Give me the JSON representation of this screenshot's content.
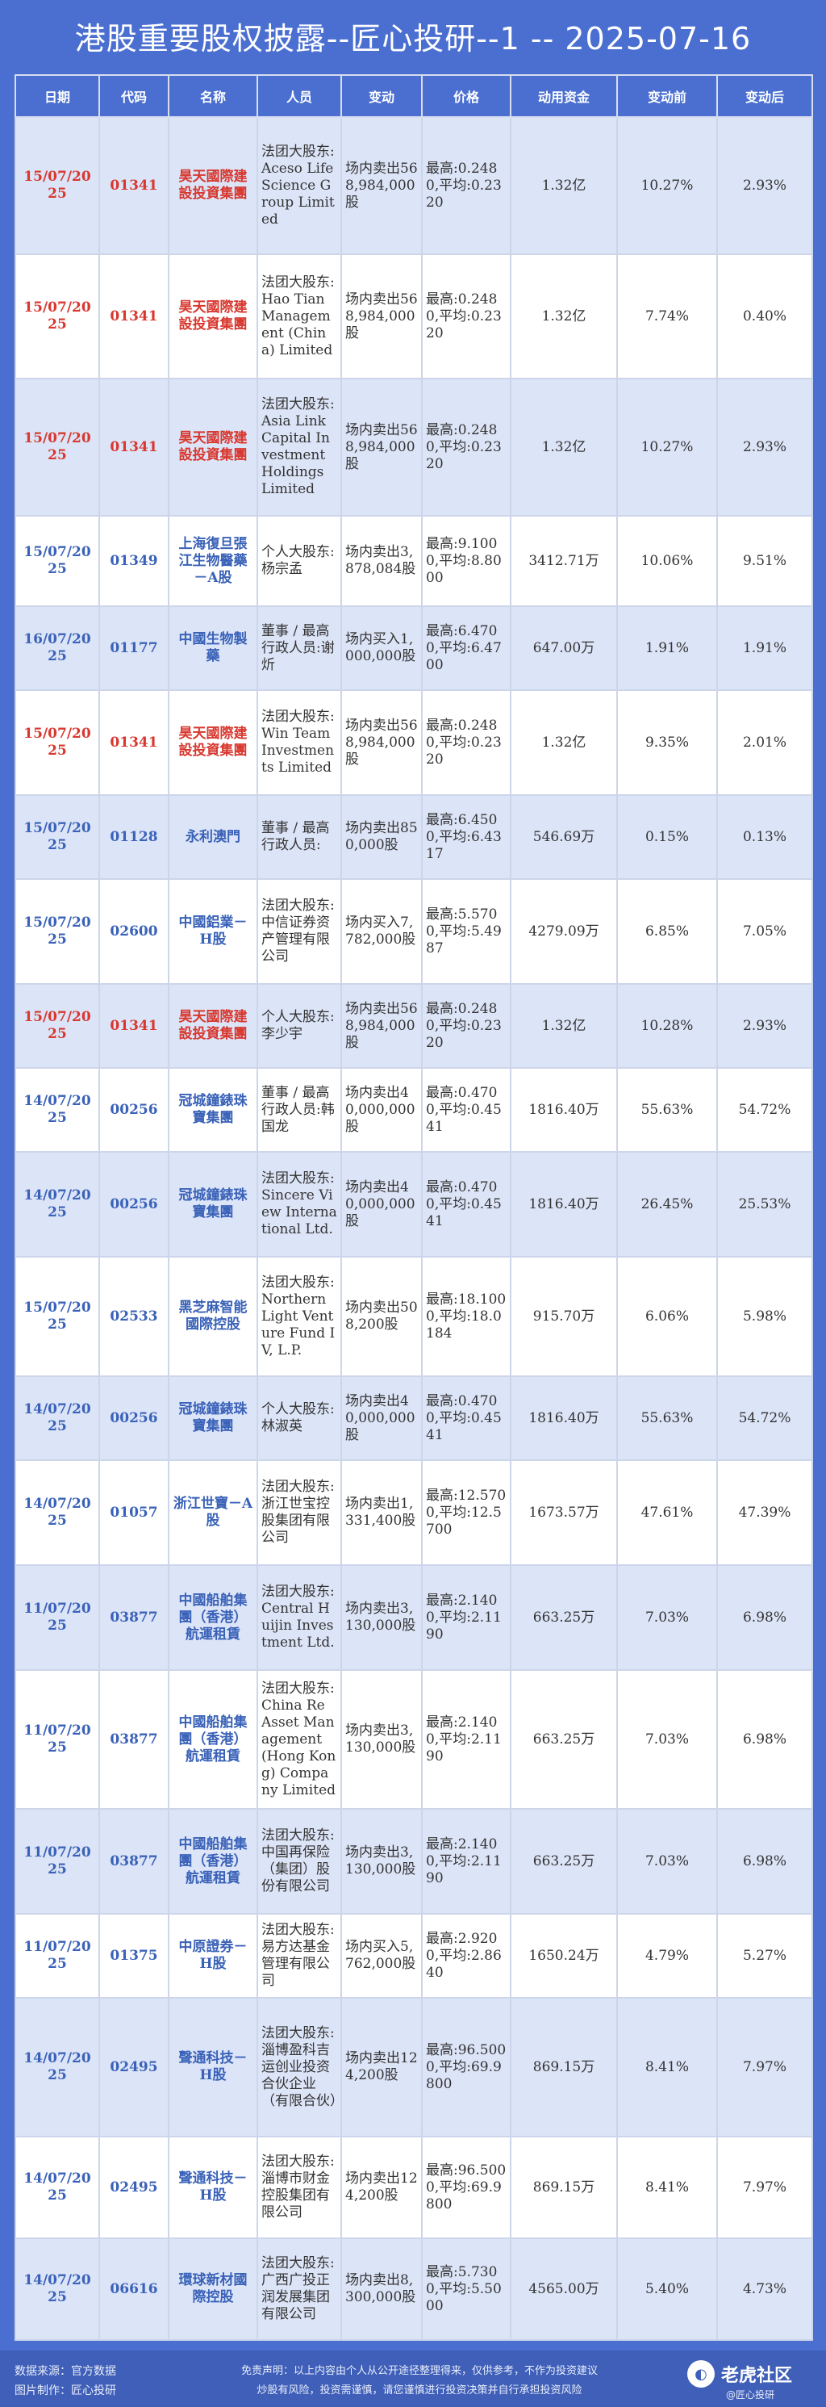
{
  "title": "港股重要股权披露--匠心投研--1 -- 2025-07-16",
  "headers": [
    "日期",
    "代码",
    "名称",
    "人员",
    "变动",
    "价格",
    "动用资金",
    "变动前",
    "变动后"
  ],
  "rows": [
    {
      "date": "15/07/2025",
      "code": "01341",
      "name": "昊天國際建設投資集團",
      "person": "法团大股东:Aceso Life Science Group Limited",
      "change": "场内卖出568,984,000股",
      "price": "最高:0.2480,平均:0.2320",
      "fund": "1.32亿",
      "before": "10.27%",
      "after": "2.93%",
      "highlight": true
    },
    {
      "date": "15/07/2025",
      "code": "01341",
      "name": "昊天國際建設投資集團",
      "person": "法团大股东:Hao Tian Management (China) Limited",
      "change": "场内卖出568,984,000股",
      "price": "最高:0.2480,平均:0.2320",
      "fund": "1.32亿",
      "before": "7.74%",
      "after": "0.40%",
      "highlight": true
    },
    {
      "date": "15/07/2025",
      "code": "01341",
      "name": "昊天國際建設投資集團",
      "person": "法团大股东:Asia Link Capital Investment Holdings Limited",
      "change": "场内卖出568,984,000股",
      "price": "最高:0.2480,平均:0.2320",
      "fund": "1.32亿",
      "before": "10.27%",
      "after": "2.93%",
      "highlight": true
    },
    {
      "date": "15/07/2025",
      "code": "01349",
      "name": "上海復旦張江生物醫藥－A股",
      "person": "个人大股东:杨宗孟",
      "change": "场内卖出3,878,084股",
      "price": "最高:9.1000,平均:8.8000",
      "fund": "3412.71万",
      "before": "10.06%",
      "after": "9.51%",
      "highlight": false
    },
    {
      "date": "16/07/2025",
      "code": "01177",
      "name": "中國生物製藥",
      "person": "董事 / 最高行政人员:谢炘",
      "change": "场内买入1,000,000股",
      "price": "最高:6.4700,平均:6.4700",
      "fund": "647.00万",
      "before": "1.91%",
      "after": "1.91%",
      "highlight": false
    },
    {
      "date": "15/07/2025",
      "code": "01341",
      "name": "昊天國際建設投資集團",
      "person": "法团大股东:Win Team Investments Limited",
      "change": "场内卖出568,984,000股",
      "price": "最高:0.2480,平均:0.2320",
      "fund": "1.32亿",
      "before": "9.35%",
      "after": "2.01%",
      "highlight": true
    },
    {
      "date": "15/07/2025",
      "code": "01128",
      "name": "永利澳門",
      "person": "董事 / 最高行政人员:",
      "change": "场内卖出850,000股",
      "price": "最高:6.4500,平均:6.4317",
      "fund": "546.69万",
      "before": "0.15%",
      "after": "0.13%",
      "highlight": false
    },
    {
      "date": "15/07/2025",
      "code": "02600",
      "name": "中國鋁業－H股",
      "person": "法团大股东:中信证券资产管理有限公司",
      "change": "场内买入7,782,000股",
      "price": "最高:5.5700,平均:5.4987",
      "fund": "4279.09万",
      "before": "6.85%",
      "after": "7.05%",
      "highlight": false
    },
    {
      "date": "15/07/2025",
      "code": "01341",
      "name": "昊天國際建設投資集團",
      "person": "个人大股东:李少宇",
      "change": "场内卖出568,984,000股",
      "price": "最高:0.2480,平均:0.2320",
      "fund": "1.32亿",
      "before": "10.28%",
      "after": "2.93%",
      "highlight": true
    },
    {
      "date": "14/07/2025",
      "code": "00256",
      "name": "冠城鐘錶珠寶集團",
      "person": "董事 / 最高行政人员:韩国龙",
      "change": "场内卖出40,000,000股",
      "price": "最高:0.4700,平均:0.4541",
      "fund": "1816.40万",
      "before": "55.63%",
      "after": "54.72%",
      "highlight": false
    },
    {
      "date": "14/07/2025",
      "code": "00256",
      "name": "冠城鐘錶珠寶集團",
      "person": "法团大股东:Sincere View International Ltd.",
      "change": "场内卖出40,000,000股",
      "price": "最高:0.4700,平均:0.4541",
      "fund": "1816.40万",
      "before": "26.45%",
      "after": "25.53%",
      "highlight": false
    },
    {
      "date": "15/07/2025",
      "code": "02533",
      "name": "黑芝麻智能國際控股",
      "person": "法团大股东:Northern Light Venture Fund IV, L.P.",
      "change": "场内卖出508,200股",
      "price": "最高:18.1000,平均:18.0184",
      "fund": "915.70万",
      "before": "6.06%",
      "after": "5.98%",
      "highlight": false
    },
    {
      "date": "14/07/2025",
      "code": "00256",
      "name": "冠城鐘錶珠寶集團",
      "person": "个人大股东:林淑英",
      "change": "场内卖出40,000,000股",
      "price": "最高:0.4700,平均:0.4541",
      "fund": "1816.40万",
      "before": "55.63%",
      "after": "54.72%",
      "highlight": false
    },
    {
      "date": "14/07/2025",
      "code": "01057",
      "name": "浙江世寶－A股",
      "person": "法团大股东:浙江世宝控股集团有限公司",
      "change": "场内卖出1,331,400股",
      "price": "最高:12.5700,平均:12.5700",
      "fund": "1673.57万",
      "before": "47.61%",
      "after": "47.39%",
      "highlight": false
    },
    {
      "date": "11/07/2025",
      "code": "03877",
      "name": "中國船舶集團（香港）航運租賃",
      "person": "法团大股东:Central Huijin Investment Ltd.",
      "change": "场内卖出3,130,000股",
      "price": "最高:2.1400,平均:2.1190",
      "fund": "663.25万",
      "before": "7.03%",
      "after": "6.98%",
      "highlight": false
    },
    {
      "date": "11/07/2025",
      "code": "03877",
      "name": "中國船舶集團（香港）航運租賃",
      "person": "法团大股东:China Re Asset Management (Hong Kong) Company Limited",
      "change": "场内卖出3,130,000股",
      "price": "最高:2.1400,平均:2.1190",
      "fund": "663.25万",
      "before": "7.03%",
      "after": "6.98%",
      "highlight": false
    },
    {
      "date": "11/07/2025",
      "code": "03877",
      "name": "中國船舶集團（香港）航運租賃",
      "person": "法团大股东:中国再保险（集团）股份有限公司",
      "change": "场内卖出3,130,000股",
      "price": "最高:2.1400,平均:2.1190",
      "fund": "663.25万",
      "before": "7.03%",
      "after": "6.98%",
      "highlight": false
    },
    {
      "date": "11/07/2025",
      "code": "01375",
      "name": "中原證券－H股",
      "person": "法团大股东:易方达基金管理有限公司",
      "change": "场内买入5,762,000股",
      "price": "最高:2.9200,平均:2.8640",
      "fund": "1650.24万",
      "before": "4.79%",
      "after": "5.27%",
      "highlight": false
    },
    {
      "date": "14/07/2025",
      "code": "02495",
      "name": "聲通科技－H股",
      "person": "法团大股东:淄博盈科吉运创业投资合伙企业（有限合伙）",
      "change": "场内卖出124,200股",
      "price": "最高:96.5000,平均:69.9800",
      "fund": "869.15万",
      "before": "8.41%",
      "after": "7.97%",
      "highlight": false
    },
    {
      "date": "14/07/2025",
      "code": "02495",
      "name": "聲通科技－H股",
      "person": "法团大股东:淄博市财金控股集团有限公司",
      "change": "场内卖出124,200股",
      "price": "最高:96.5000,平均:69.9800",
      "fund": "869.15万",
      "before": "8.41%",
      "after": "7.97%",
      "highlight": false
    },
    {
      "date": "14/07/2025",
      "code": "06616",
      "name": "環球新材國際控股",
      "person": "法团大股东:广西广投正润发展集团有限公司",
      "change": "场内卖出8,300,000股",
      "price": "最高:5.7300,平均:5.5000",
      "fund": "4565.00万",
      "before": "5.40%",
      "after": "4.73%",
      "highlight": false
    }
  ],
  "footer": {
    "source": "数据来源：官方数据",
    "producer": "图片制作：匠心投研",
    "disclaimer_line1": "免责声明：以上内容由个人从公开途径整理得来，仅供参考，不作为投资建议",
    "disclaimer_line2": "炒股有风险，投资需谨慎，请您谨慎进行投资决策并自行承担投资风险",
    "logo_text": "老虎社区",
    "logo_sub": "@匠心投研"
  },
  "colors": {
    "background": "#4a6fd0",
    "header_bg": "#4a6fd0",
    "row_stripe": "#dce4f7",
    "highlight_text": "#d8382f",
    "link_text": "#3a62b8"
  }
}
